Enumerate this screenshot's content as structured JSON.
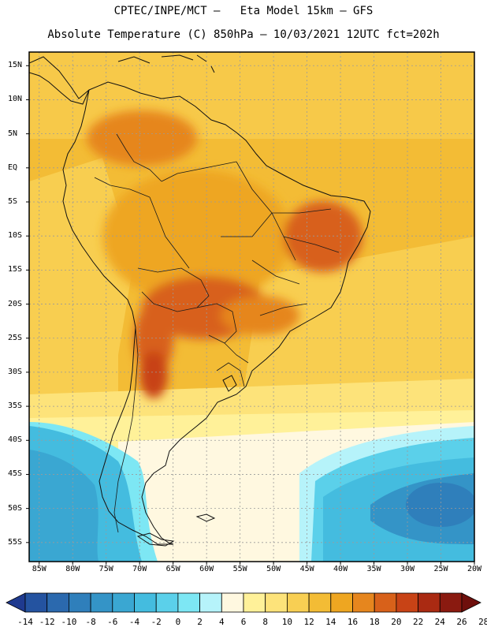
{
  "header": {
    "line1": "CPTEC/INPE/MCT –   Eta Model 15km – GFS",
    "line2": "Absolute Temperature (C) 850hPa – 10/03/2021 12UTC fct=202h"
  },
  "colors": {
    "frame": "#000000",
    "grid": "#9a9a9a",
    "coast": "#111111",
    "bins": [
      "#1f3a8f",
      "#2453a0",
      "#2b69ae",
      "#2f7fbb",
      "#3494c7",
      "#3aa7d2",
      "#44bcdf",
      "#5bd0ea",
      "#7de7f4",
      "#b6f3fa",
      "#fff8e0",
      "#fff199",
      "#fde37a",
      "#f8cf53",
      "#f3bc35",
      "#eea621",
      "#e6861e",
      "#d8611a",
      "#c84316",
      "#aa2a12",
      "#8a1a10",
      "#6e0f0c"
    ]
  },
  "axes": {
    "lat_labels": [
      "15N",
      "10N",
      "5N",
      "EQ",
      "5S",
      "10S",
      "15S",
      "20S",
      "25S",
      "30S",
      "35S",
      "40S",
      "45S",
      "50S",
      "55S"
    ],
    "lat_values": [
      15,
      10,
      5,
      0,
      -5,
      -10,
      -15,
      -20,
      -25,
      -30,
      -35,
      -40,
      -45,
      -50,
      -55
    ],
    "lon_labels": [
      "85W",
      "80W",
      "75W",
      "70W",
      "65W",
      "60W",
      "55W",
      "50W",
      "45W",
      "40W",
      "35W",
      "30W",
      "25W",
      "20W"
    ],
    "lon_values": [
      -85,
      -80,
      -75,
      -70,
      -65,
      -60,
      -55,
      -50,
      -45,
      -40,
      -35,
      -30,
      -25,
      -20
    ],
    "lat_range": [
      17,
      -57.8
    ],
    "lon_range": [
      -86.5,
      -20
    ]
  },
  "colorbar": {
    "labels": [
      "-14",
      "-12",
      "-10",
      "-8",
      "-6",
      "-4",
      "-2",
      "0",
      "2",
      "4",
      "6",
      "8",
      "10",
      "12",
      "14",
      "16",
      "18",
      "20",
      "22",
      "24",
      "26",
      "28"
    ],
    "values": [
      -14,
      -12,
      -10,
      -8,
      -6,
      -4,
      -2,
      0,
      2,
      4,
      6,
      8,
      10,
      12,
      14,
      16,
      18,
      20,
      22,
      24,
      26,
      28
    ]
  }
}
